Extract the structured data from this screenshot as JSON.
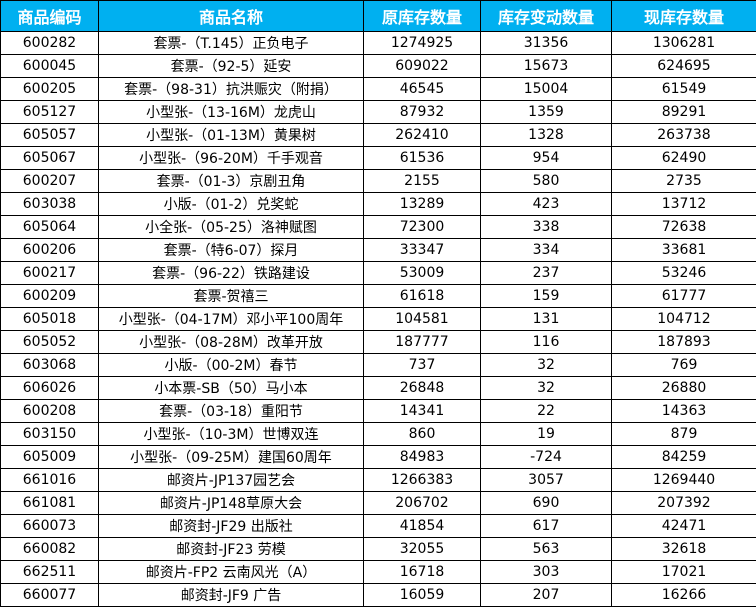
{
  "table": {
    "headers": [
      "商品编码",
      "商品名称",
      "原库存数量",
      "库存变动数量",
      "现库存数量"
    ],
    "rows": [
      [
        "600282",
        "套票-（T.145）正负电子",
        "1274925",
        "31356",
        "1306281"
      ],
      [
        "600045",
        "套票-（92-5）延安",
        "609022",
        "15673",
        "624695"
      ],
      [
        "600205",
        "套票-（98-31）抗洪赈灾（附捐）",
        "46545",
        "15004",
        "61549"
      ],
      [
        "605127",
        "小型张-（13-16M）龙虎山",
        "87932",
        "1359",
        "89291"
      ],
      [
        "605057",
        "小型张-（01-13M）黄果树",
        "262410",
        "1328",
        "263738"
      ],
      [
        "605067",
        "小型张-（96-20M）千手观音",
        "61536",
        "954",
        "62490"
      ],
      [
        "600207",
        "套票-（01-3）京剧丑角",
        "2155",
        "580",
        "2735"
      ],
      [
        "603038",
        "小版-（01-2）兑奖蛇",
        "13289",
        "423",
        "13712"
      ],
      [
        "605064",
        "小全张-（05-25）洛神赋图",
        "72300",
        "338",
        "72638"
      ],
      [
        "600206",
        "套票-（特6-07）探月",
        "33347",
        "334",
        "33681"
      ],
      [
        "600217",
        "套票-（96-22）铁路建设",
        "53009",
        "237",
        "53246"
      ],
      [
        "600209",
        "套票-贺禧三",
        "61618",
        "159",
        "61777"
      ],
      [
        "605018",
        "小型张-（04-17M）邓小平100周年",
        "104581",
        "131",
        "104712"
      ],
      [
        "605052",
        "小型张-（08-28M）改革开放",
        "187777",
        "116",
        "187893"
      ],
      [
        "603068",
        "小版-（00-2M）春节",
        "737",
        "32",
        "769"
      ],
      [
        "606026",
        "小本票-SB（50）马小本",
        "26848",
        "32",
        "26880"
      ],
      [
        "600208",
        "套票-（03-18）重阳节",
        "14341",
        "22",
        "14363"
      ],
      [
        "603150",
        "小型张-（10-3M）世博双连",
        "860",
        "19",
        "879"
      ],
      [
        "605009",
        "小型张-（09-25M）建国60周年",
        "84983",
        "-724",
        "84259"
      ],
      [
        "661016",
        "邮资片-JP137园艺会",
        "1266383",
        "3057",
        "1269440"
      ],
      [
        "661081",
        "邮资片-JP148草原大会",
        "206702",
        "690",
        "207392"
      ],
      [
        "660073",
        "邮资封-JF29 出版社",
        "41854",
        "617",
        "42471"
      ],
      [
        "660082",
        "邮资封-JF23 劳模",
        "32055",
        "563",
        "32618"
      ],
      [
        "662511",
        "邮资片-FP2 云南风光（A）",
        "16718",
        "303",
        "17021"
      ],
      [
        "660077",
        "邮资封-JF9 广告",
        "16059",
        "207",
        "16266"
      ]
    ]
  }
}
